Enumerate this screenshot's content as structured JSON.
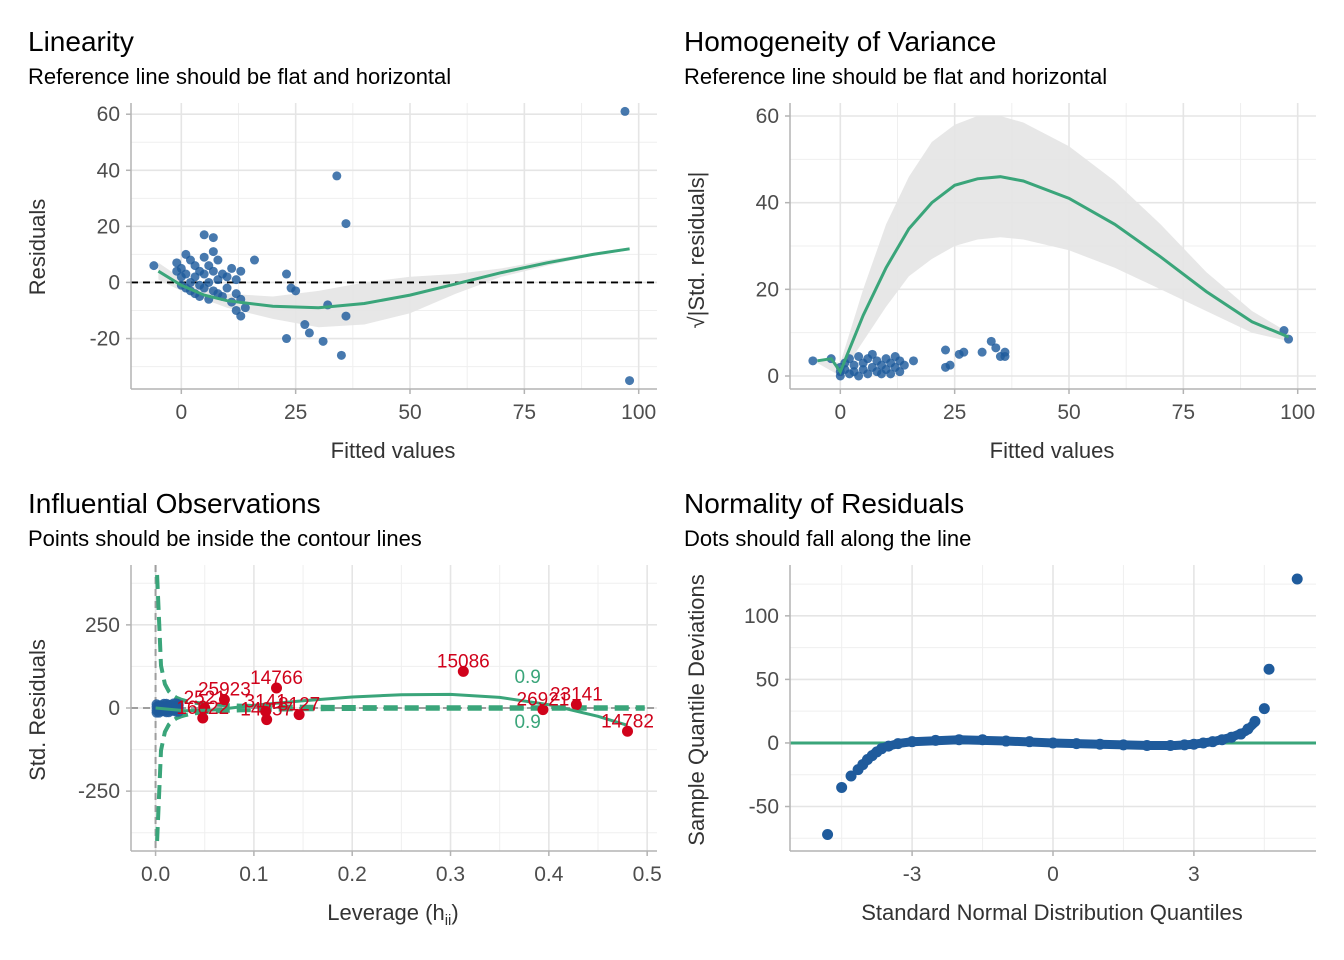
{
  "chart_data": [
    {
      "type": "scatter",
      "title": "Linearity",
      "subtitle": "Reference line should be flat and horizontal",
      "xlabel": "Fitted values",
      "ylabel": "Residuals",
      "xlim": [
        -11,
        104
      ],
      "ylim": [
        -38,
        64
      ],
      "xticks": [
        0,
        25,
        50,
        75,
        100
      ],
      "yticks": [
        -20,
        0,
        20,
        40,
        60
      ],
      "x_tick_labels": [
        "0",
        "25",
        "50",
        "75",
        "100"
      ],
      "y_tick_labels": [
        "-20",
        "0",
        "20",
        "40",
        "60"
      ],
      "grid": true,
      "reference_line": 0,
      "points": [
        {
          "x": -6,
          "y": 6
        },
        {
          "x": -1,
          "y": 7
        },
        {
          "x": -1,
          "y": 4
        },
        {
          "x": 0,
          "y": 2
        },
        {
          "x": 0,
          "y": -1
        },
        {
          "x": 0,
          "y": 5
        },
        {
          "x": 1,
          "y": 10
        },
        {
          "x": 1,
          "y": 3
        },
        {
          "x": 1,
          "y": -2
        },
        {
          "x": 2,
          "y": 8
        },
        {
          "x": 2,
          "y": 0
        },
        {
          "x": 2,
          "y": -3
        },
        {
          "x": 3,
          "y": 6
        },
        {
          "x": 3,
          "y": 2
        },
        {
          "x": 3,
          "y": -4
        },
        {
          "x": 4,
          "y": 4
        },
        {
          "x": 4,
          "y": -1
        },
        {
          "x": 4,
          "y": -5
        },
        {
          "x": 5,
          "y": 17
        },
        {
          "x": 5,
          "y": 9
        },
        {
          "x": 5,
          "y": 3
        },
        {
          "x": 5,
          "y": -2
        },
        {
          "x": 6,
          "y": 6
        },
        {
          "x": 6,
          "y": 0
        },
        {
          "x": 6,
          "y": -6
        },
        {
          "x": 7,
          "y": 16
        },
        {
          "x": 7,
          "y": 11
        },
        {
          "x": 7,
          "y": 4
        },
        {
          "x": 7,
          "y": -3
        },
        {
          "x": 8,
          "y": 8
        },
        {
          "x": 8,
          "y": 1
        },
        {
          "x": 8,
          "y": -4
        },
        {
          "x": 9,
          "y": 3
        },
        {
          "x": 9,
          "y": -5
        },
        {
          "x": 10,
          "y": 2
        },
        {
          "x": 10,
          "y": -2
        },
        {
          "x": 11,
          "y": 5
        },
        {
          "x": 11,
          "y": -7
        },
        {
          "x": 12,
          "y": 1
        },
        {
          "x": 12,
          "y": -10
        },
        {
          "x": 12,
          "y": -4
        },
        {
          "x": 13,
          "y": 4
        },
        {
          "x": 13,
          "y": -12
        },
        {
          "x": 13,
          "y": -6
        },
        {
          "x": 14,
          "y": -9
        },
        {
          "x": 16,
          "y": 8
        },
        {
          "x": 23,
          "y": 3
        },
        {
          "x": 23,
          "y": -20
        },
        {
          "x": 24,
          "y": -2
        },
        {
          "x": 25,
          "y": -3
        },
        {
          "x": 27,
          "y": -15
        },
        {
          "x": 28,
          "y": -18
        },
        {
          "x": 31,
          "y": -21
        },
        {
          "x": 32,
          "y": -8
        },
        {
          "x": 34,
          "y": 38
        },
        {
          "x": 35,
          "y": -26
        },
        {
          "x": 36,
          "y": 21
        },
        {
          "x": 36,
          "y": -12
        },
        {
          "x": 97,
          "y": 61
        },
        {
          "x": 98,
          "y": -35
        }
      ],
      "smooth": [
        {
          "x": -5,
          "y": 4
        },
        {
          "x": 0,
          "y": -1
        },
        {
          "x": 5,
          "y": -4.5
        },
        {
          "x": 10,
          "y": -6.5
        },
        {
          "x": 20,
          "y": -8.5
        },
        {
          "x": 30,
          "y": -9
        },
        {
          "x": 40,
          "y": -7.5
        },
        {
          "x": 50,
          "y": -4.5
        },
        {
          "x": 60,
          "y": -0.5
        },
        {
          "x": 70,
          "y": 3.5
        },
        {
          "x": 80,
          "y": 7
        },
        {
          "x": 90,
          "y": 10
        },
        {
          "x": 98,
          "y": 12
        }
      ],
      "band_upper": [
        {
          "x": -5,
          "y": 7
        },
        {
          "x": 0,
          "y": 1.5
        },
        {
          "x": 10,
          "y": -4
        },
        {
          "x": 20,
          "y": -5
        },
        {
          "x": 30,
          "y": -3
        },
        {
          "x": 40,
          "y": 0
        },
        {
          "x": 50,
          "y": 2
        },
        {
          "x": 60,
          "y": 3
        },
        {
          "x": 70,
          "y": 5
        },
        {
          "x": 80,
          "y": 8
        },
        {
          "x": 90,
          "y": 10.5
        },
        {
          "x": 98,
          "y": 12.5
        }
      ],
      "band_lower": [
        {
          "x": -5,
          "y": 1
        },
        {
          "x": 0,
          "y": -3
        },
        {
          "x": 10,
          "y": -9
        },
        {
          "x": 20,
          "y": -13
        },
        {
          "x": 30,
          "y": -16
        },
        {
          "x": 40,
          "y": -15
        },
        {
          "x": 50,
          "y": -11
        },
        {
          "x": 60,
          "y": -4
        },
        {
          "x": 70,
          "y": 2
        },
        {
          "x": 80,
          "y": 6
        },
        {
          "x": 90,
          "y": 9.5
        },
        {
          "x": 98,
          "y": 11.5
        }
      ]
    },
    {
      "type": "scatter",
      "title": "Homogeneity of Variance",
      "subtitle": "Reference line should be flat and horizontal",
      "xlabel": "Fitted values",
      "ylabel": "√|Std. residuals|",
      "xlim": [
        -11,
        104
      ],
      "ylim": [
        -3,
        63
      ],
      "xticks": [
        0,
        25,
        50,
        75,
        100
      ],
      "yticks": [
        0,
        20,
        40,
        60
      ],
      "x_tick_labels": [
        "0",
        "25",
        "50",
        "75",
        "100"
      ],
      "y_tick_labels": [
        "0",
        "20",
        "40",
        "60"
      ],
      "grid": true,
      "points": [
        {
          "x": -6,
          "y": 3.5
        },
        {
          "x": -2,
          "y": 4
        },
        {
          "x": 0,
          "y": 2
        },
        {
          "x": 0,
          "y": 1
        },
        {
          "x": 0,
          "y": 0
        },
        {
          "x": 1,
          "y": 3
        },
        {
          "x": 1,
          "y": 1.5
        },
        {
          "x": 2,
          "y": 4
        },
        {
          "x": 2,
          "y": 0.5
        },
        {
          "x": 3,
          "y": 2.5
        },
        {
          "x": 3,
          "y": 1
        },
        {
          "x": 4,
          "y": 4.5
        },
        {
          "x": 4,
          "y": 0
        },
        {
          "x": 5,
          "y": 3
        },
        {
          "x": 5,
          "y": 1.5
        },
        {
          "x": 6,
          "y": 4
        },
        {
          "x": 6,
          "y": 0.5
        },
        {
          "x": 7,
          "y": 2
        },
        {
          "x": 7,
          "y": 5
        },
        {
          "x": 8,
          "y": 1
        },
        {
          "x": 8,
          "y": 3.5
        },
        {
          "x": 9,
          "y": 2.5
        },
        {
          "x": 9,
          "y": 0.5
        },
        {
          "x": 10,
          "y": 4
        },
        {
          "x": 10,
          "y": 1.5
        },
        {
          "x": 11,
          "y": 3
        },
        {
          "x": 11,
          "y": 0.5
        },
        {
          "x": 12,
          "y": 2
        },
        {
          "x": 12,
          "y": 4.5
        },
        {
          "x": 13,
          "y": 1
        },
        {
          "x": 13,
          "y": 3.5
        },
        {
          "x": 14,
          "y": 2.5
        },
        {
          "x": 16,
          "y": 3.5
        },
        {
          "x": 23,
          "y": 6
        },
        {
          "x": 23,
          "y": 2
        },
        {
          "x": 24,
          "y": 2.5
        },
        {
          "x": 26,
          "y": 5
        },
        {
          "x": 27,
          "y": 5.5
        },
        {
          "x": 31,
          "y": 5.5
        },
        {
          "x": 33,
          "y": 8
        },
        {
          "x": 34,
          "y": 6.5
        },
        {
          "x": 35,
          "y": 4.5
        },
        {
          "x": 36,
          "y": 5.5
        },
        {
          "x": 36,
          "y": 4.5
        },
        {
          "x": 97,
          "y": 10.5
        },
        {
          "x": 98,
          "y": 8.5
        }
      ],
      "smooth": [
        {
          "x": -5,
          "y": 3.5
        },
        {
          "x": -2,
          "y": 4
        },
        {
          "x": 0,
          "y": 1
        },
        {
          "x": 5,
          "y": 14
        },
        {
          "x": 10,
          "y": 25
        },
        {
          "x": 15,
          "y": 34
        },
        {
          "x": 20,
          "y": 40
        },
        {
          "x": 25,
          "y": 44
        },
        {
          "x": 30,
          "y": 45.5
        },
        {
          "x": 35,
          "y": 46
        },
        {
          "x": 40,
          "y": 45
        },
        {
          "x": 50,
          "y": 41
        },
        {
          "x": 60,
          "y": 35
        },
        {
          "x": 70,
          "y": 27.5
        },
        {
          "x": 80,
          "y": 19.5
        },
        {
          "x": 90,
          "y": 12.5
        },
        {
          "x": 98,
          "y": 9
        }
      ],
      "band_upper": [
        {
          "x": -5,
          "y": 4
        },
        {
          "x": 0,
          "y": 3
        },
        {
          "x": 5,
          "y": 20
        },
        {
          "x": 10,
          "y": 35
        },
        {
          "x": 15,
          "y": 46
        },
        {
          "x": 20,
          "y": 54
        },
        {
          "x": 25,
          "y": 58
        },
        {
          "x": 30,
          "y": 60
        },
        {
          "x": 35,
          "y": 60
        },
        {
          "x": 40,
          "y": 58.5
        },
        {
          "x": 50,
          "y": 53
        },
        {
          "x": 60,
          "y": 45
        },
        {
          "x": 70,
          "y": 35
        },
        {
          "x": 80,
          "y": 24
        },
        {
          "x": 90,
          "y": 15
        },
        {
          "x": 98,
          "y": 10
        }
      ],
      "band_lower": [
        {
          "x": -5,
          "y": 3
        },
        {
          "x": 0,
          "y": 0
        },
        {
          "x": 5,
          "y": 8
        },
        {
          "x": 10,
          "y": 16
        },
        {
          "x": 15,
          "y": 23
        },
        {
          "x": 20,
          "y": 27
        },
        {
          "x": 25,
          "y": 30
        },
        {
          "x": 30,
          "y": 31.5
        },
        {
          "x": 35,
          "y": 32
        },
        {
          "x": 40,
          "y": 31.5
        },
        {
          "x": 50,
          "y": 29
        },
        {
          "x": 60,
          "y": 25
        },
        {
          "x": 70,
          "y": 20
        },
        {
          "x": 80,
          "y": 15
        },
        {
          "x": 90,
          "y": 10
        },
        {
          "x": 98,
          "y": 8
        }
      ]
    },
    {
      "type": "scatter",
      "title": "Influential Observations",
      "subtitle": "Points should be inside the contour lines",
      "xlabel": "Leverage (h",
      "xlabel_subscript": "ii",
      "xlabel_suffix": ")",
      "ylabel": "Std. Residuals",
      "xlim": [
        -0.025,
        0.51
      ],
      "ylim": [
        -430,
        430
      ],
      "xticks": [
        0,
        0.1,
        0.2,
        0.3,
        0.4,
        0.5
      ],
      "yticks": [
        -250,
        0,
        250
      ],
      "x_tick_labels": [
        "0.0",
        "0.1",
        "0.2",
        "0.3",
        "0.4",
        "0.5"
      ],
      "y_tick_labels": [
        "-250",
        "0",
        "250"
      ],
      "grid": true,
      "contour_labels": [
        "0.9",
        "0.9"
      ],
      "contour_label_positions": [
        {
          "x": 0.365,
          "y": 75
        },
        {
          "x": 0.365,
          "y": -60
        }
      ],
      "influential": [
        {
          "label": "25923",
          "x": 0.07,
          "y": 25
        },
        {
          "label": "14766",
          "x": 0.123,
          "y": 60
        },
        {
          "label": "2521",
          "x": 0.05,
          "y": 0
        },
        {
          "label": "16022",
          "x": 0.048,
          "y": -30
        },
        {
          "label": "3141",
          "x": 0.112,
          "y": -10
        },
        {
          "label": "14857",
          "x": 0.113,
          "y": -35
        },
        {
          "label": "15086",
          "x": 0.313,
          "y": 110
        },
        {
          "label": "23141",
          "x": 0.428,
          "y": 10
        },
        {
          "label": "26921",
          "x": 0.394,
          "y": -5
        },
        {
          "label": "14782",
          "x": 0.48,
          "y": -70
        },
        {
          "label": "8127",
          "x": 0.146,
          "y": -20
        }
      ],
      "smooth": [
        {
          "x": 0.0,
          "y": 0
        },
        {
          "x": 0.03,
          "y": -8
        },
        {
          "x": 0.06,
          "y": -6
        },
        {
          "x": 0.1,
          "y": 8
        },
        {
          "x": 0.15,
          "y": 22
        },
        {
          "x": 0.2,
          "y": 33
        },
        {
          "x": 0.25,
          "y": 40
        },
        {
          "x": 0.3,
          "y": 41
        },
        {
          "x": 0.35,
          "y": 32
        },
        {
          "x": 0.4,
          "y": 10
        },
        {
          "x": 0.45,
          "y": -25
        },
        {
          "x": 0.48,
          "y": -52
        }
      ]
    },
    {
      "type": "scatter",
      "title": "Normality of Residuals",
      "subtitle": "Dots should fall along the line",
      "xlabel": "Standard Normal Distribution Quantiles",
      "ylabel": "Sample Quantile Deviations",
      "xlim": [
        -5.6,
        5.6
      ],
      "ylim": [
        -85,
        140
      ],
      "xticks": [
        -3,
        0,
        3
      ],
      "yticks": [
        -50,
        0,
        50,
        100
      ],
      "x_tick_labels": [
        "-3",
        "0",
        "3"
      ],
      "y_tick_labels": [
        "-50",
        "0",
        "50",
        "100"
      ],
      "grid": true,
      "reference_line": 0,
      "points": [
        {
          "x": -4.8,
          "y": -72
        },
        {
          "x": -4.5,
          "y": -35
        },
        {
          "x": -4.3,
          "y": -26
        },
        {
          "x": -4.15,
          "y": -21
        },
        {
          "x": -4.05,
          "y": -17
        },
        {
          "x": -3.95,
          "y": -13
        },
        {
          "x": -3.85,
          "y": -10
        },
        {
          "x": -3.75,
          "y": -7
        },
        {
          "x": -3.65,
          "y": -4.5
        },
        {
          "x": -3.5,
          "y": -2.5
        },
        {
          "x": -3.3,
          "y": -0.5
        },
        {
          "x": -3.0,
          "y": 1
        },
        {
          "x": -2.5,
          "y": 2
        },
        {
          "x": -2.0,
          "y": 2.5
        },
        {
          "x": -1.5,
          "y": 2.5
        },
        {
          "x": -1.0,
          "y": 1.5
        },
        {
          "x": -0.5,
          "y": 1
        },
        {
          "x": 0.0,
          "y": 0
        },
        {
          "x": 0.5,
          "y": -0.5
        },
        {
          "x": 1.0,
          "y": -1
        },
        {
          "x": 1.5,
          "y": -1.5
        },
        {
          "x": 2.0,
          "y": -2
        },
        {
          "x": 2.5,
          "y": -2
        },
        {
          "x": 2.8,
          "y": -1.5
        },
        {
          "x": 3.0,
          "y": -1
        },
        {
          "x": 3.2,
          "y": 0
        },
        {
          "x": 3.4,
          "y": 1
        },
        {
          "x": 3.6,
          "y": 2.5
        },
        {
          "x": 3.8,
          "y": 4.5
        },
        {
          "x": 4.0,
          "y": 7
        },
        {
          "x": 4.15,
          "y": 11
        },
        {
          "x": 4.3,
          "y": 17
        },
        {
          "x": 4.5,
          "y": 27
        },
        {
          "x": 4.6,
          "y": 58
        },
        {
          "x": 5.2,
          "y": 129
        }
      ],
      "curve": [
        {
          "x": -4.0,
          "y": -15
        },
        {
          "x": -3.8,
          "y": -8
        },
        {
          "x": -3.6,
          "y": -3.5
        },
        {
          "x": -3.3,
          "y": -0.5
        },
        {
          "x": -3.0,
          "y": 1
        },
        {
          "x": -2.0,
          "y": 2.5
        },
        {
          "x": -1.0,
          "y": 1.5
        },
        {
          "x": 0.0,
          "y": 0
        },
        {
          "x": 1.0,
          "y": -1
        },
        {
          "x": 2.0,
          "y": -2
        },
        {
          "x": 2.6,
          "y": -2
        },
        {
          "x": 3.0,
          "y": -1
        },
        {
          "x": 3.4,
          "y": 1
        },
        {
          "x": 3.8,
          "y": 4.5
        },
        {
          "x": 4.1,
          "y": 9
        },
        {
          "x": 4.3,
          "y": 16
        }
      ]
    }
  ],
  "colors": {
    "points": "#1f5b9c",
    "smooth": "#3aa57a",
    "band": "#e4e4e4",
    "influential": "#d0021b",
    "grid": "#e5e5e5",
    "text": "#4d4d4d"
  }
}
